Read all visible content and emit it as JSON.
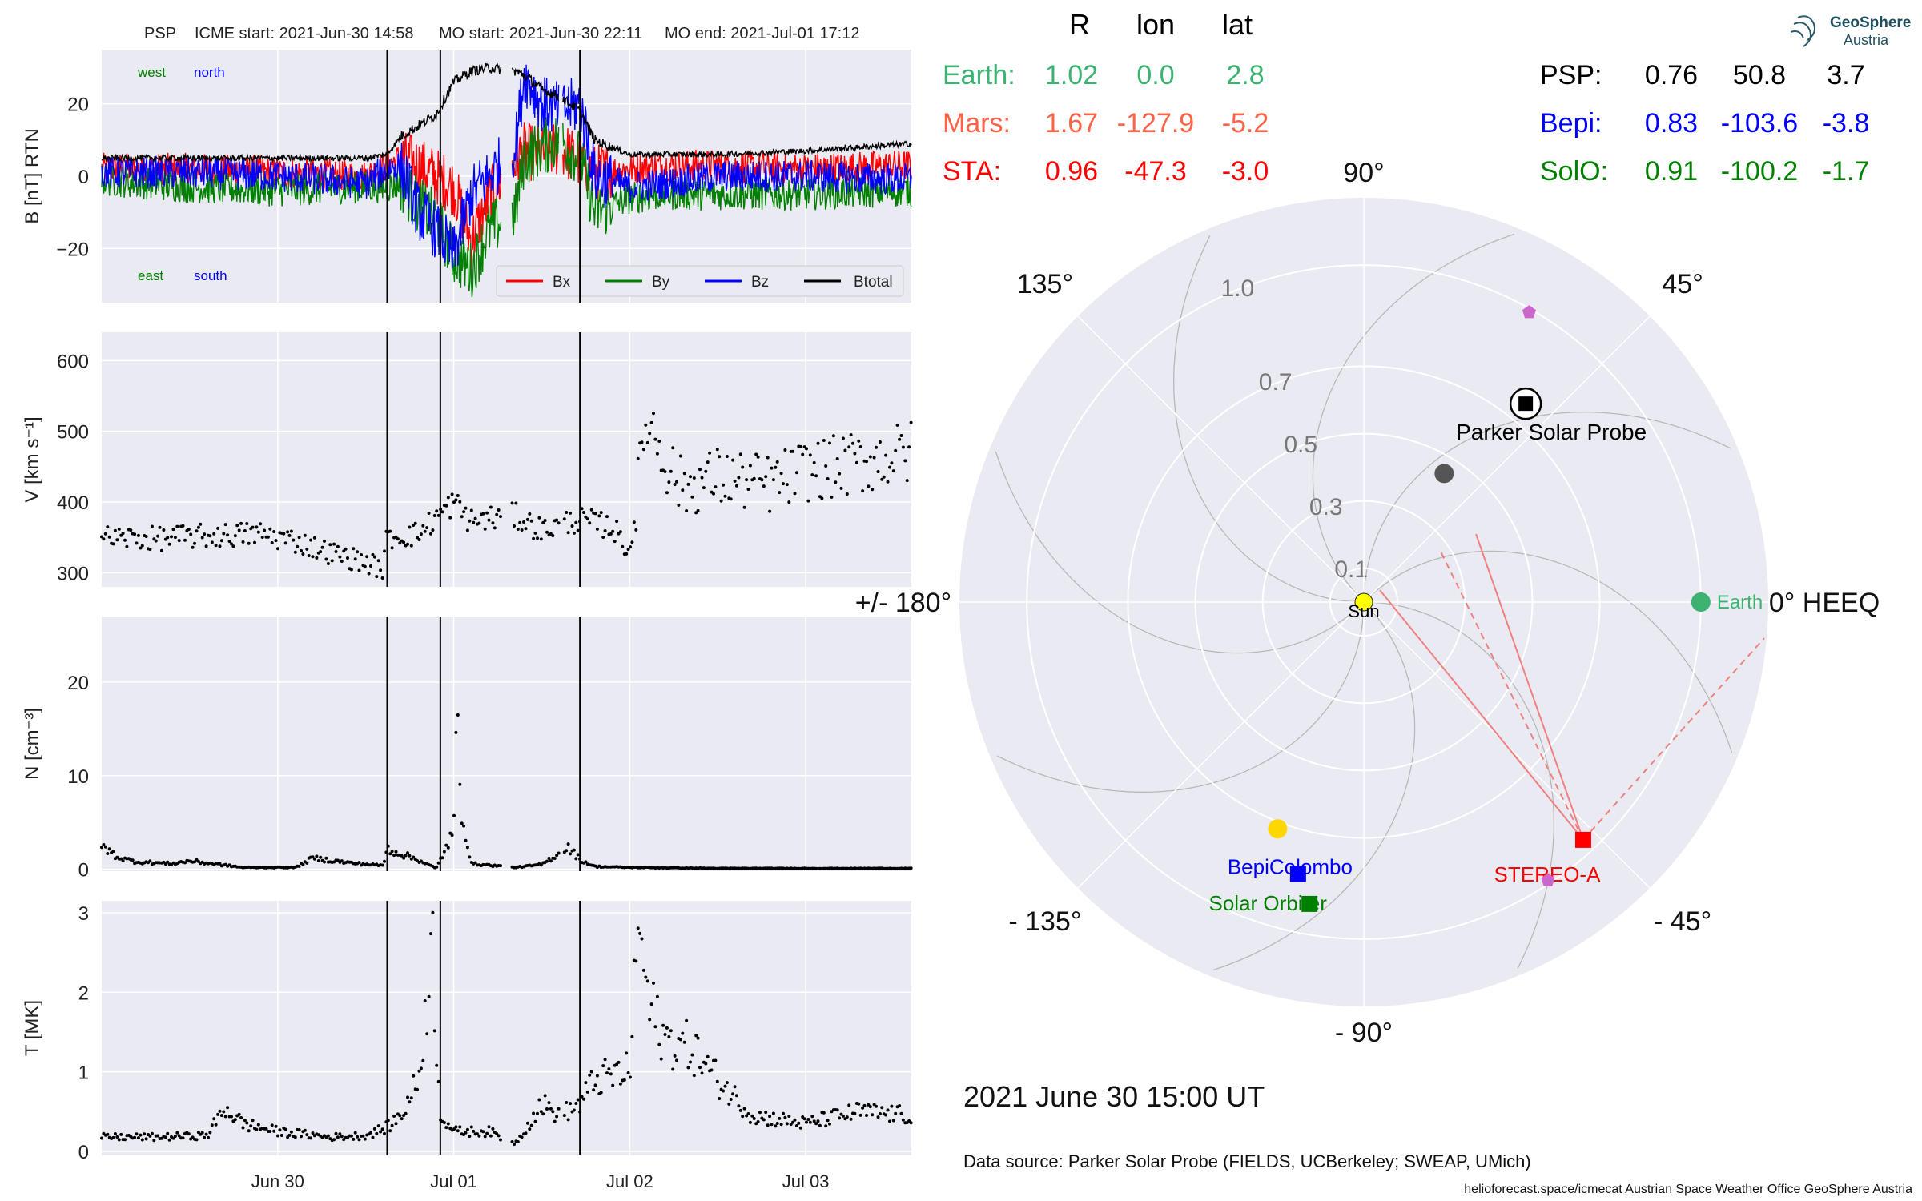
{
  "header": {
    "spacecraft": "PSP",
    "icme_start": "ICME start: 2021-Jun-30 14:58",
    "mo_start": "MO start: 2021-Jun-30 22:11",
    "mo_end": "MO end: 2021-Jul-01 17:12"
  },
  "colors": {
    "panel_bg": "#eaeaf2",
    "bx": "#ff0000",
    "by": "#008000",
    "bz": "#0000ff",
    "btotal": "#000000",
    "earth": "#3cb371",
    "mars": "#ff6347",
    "sta": "#ff0000",
    "bepi": "#0000ff",
    "solo": "#008000",
    "venus": "#ffd700",
    "mercury": "#555555",
    "planet_marker": "#cc66cc"
  },
  "timeseries": {
    "x_start_day": 0.0,
    "x_end_day": 4.6,
    "x_ticks": [
      {
        "day": 1.0,
        "label": "Jun 30"
      },
      {
        "day": 2.0,
        "label": "Jul 01"
      },
      {
        "day": 3.0,
        "label": "Jul 02"
      },
      {
        "day": 4.0,
        "label": "Jul 03"
      }
    ],
    "event_lines_day": [
      1.622,
      1.924,
      2.717
    ]
  },
  "chart_data": [
    {
      "type": "line",
      "title": "B [nT] RTN",
      "ylabel": "B [nT] RTN",
      "ylim": [
        -35,
        35
      ],
      "yticks": [
        20,
        0,
        -20
      ],
      "ytick_labels": [
        "20",
        "0",
        "−20"
      ],
      "corner_labels": {
        "west": "west",
        "north": "north",
        "east": "east",
        "south": "south"
      },
      "legend": "bottom-right",
      "series": [
        {
          "name": "Bx",
          "x": [
            0.0,
            0.5,
            1.0,
            1.5,
            1.62,
            1.7,
            1.8,
            1.9,
            2.0,
            2.1,
            2.2,
            2.35,
            2.4,
            2.5,
            2.6,
            2.72,
            2.8,
            3.0,
            3.2,
            3.5,
            4.0,
            4.6
          ],
          "y": [
            2,
            2,
            1,
            0,
            3,
            5,
            3,
            0,
            -3,
            -18,
            -6,
            4,
            7,
            6,
            8,
            4,
            1,
            2,
            3,
            3,
            2,
            3
          ]
        },
        {
          "name": "By",
          "x": [
            0.0,
            0.5,
            1.0,
            1.5,
            1.62,
            1.7,
            1.8,
            1.9,
            2.0,
            2.1,
            2.2,
            2.35,
            2.4,
            2.5,
            2.6,
            2.72,
            2.8,
            3.0,
            3.2,
            3.5,
            4.0,
            4.6
          ],
          "y": [
            -1,
            -3,
            -4,
            -3,
            -3,
            -2,
            -8,
            -12,
            -22,
            -26,
            -15,
            -10,
            5,
            8,
            10,
            5,
            -10,
            -6,
            -5,
            -5,
            -5,
            -4
          ]
        },
        {
          "name": "Bz",
          "x": [
            0.0,
            0.5,
            1.0,
            1.5,
            1.62,
            1.7,
            1.8,
            1.9,
            2.0,
            2.1,
            2.2,
            2.35,
            2.4,
            2.5,
            2.6,
            2.72,
            2.8,
            3.0,
            3.2,
            3.5,
            4.0,
            4.6
          ],
          "y": [
            1,
            1,
            0,
            -2,
            2,
            3,
            -10,
            -15,
            -22,
            -5,
            0,
            8,
            28,
            20,
            18,
            20,
            0,
            -3,
            -2,
            0,
            0,
            -1
          ]
        },
        {
          "name": "Btotal",
          "x": [
            0.0,
            0.5,
            1.0,
            1.5,
            1.62,
            1.7,
            1.8,
            1.9,
            2.0,
            2.1,
            2.2,
            2.35,
            2.4,
            2.5,
            2.6,
            2.72,
            2.8,
            3.0,
            3.2,
            3.5,
            4.0,
            4.6
          ],
          "y": [
            5,
            5,
            5,
            5,
            6,
            11,
            14,
            17,
            26,
            29,
            30,
            29,
            28,
            24,
            22,
            18,
            10,
            6,
            6,
            6,
            7,
            9
          ]
        }
      ]
    },
    {
      "type": "scatter",
      "title": "V [km s$^{-1}$]",
      "ylabel": "V [km s⁻¹]",
      "ylim": [
        280,
        640
      ],
      "yticks": [
        600,
        500,
        400,
        300
      ],
      "ytick_labels": [
        "600",
        "500",
        "400",
        "300"
      ],
      "series": [
        {
          "name": "V",
          "x": [
            0.0,
            0.3,
            0.6,
            0.9,
            1.1,
            1.3,
            1.5,
            1.6,
            1.62,
            1.8,
            1.9,
            2.0,
            2.1,
            2.15,
            2.35,
            2.5,
            2.7,
            2.9,
            3.0,
            3.1,
            3.2,
            3.3,
            3.5,
            3.8,
            4.0,
            4.2,
            4.6
          ],
          "y": [
            350,
            348,
            352,
            355,
            345,
            328,
            315,
            305,
            350,
            355,
            378,
            400,
            372,
            375,
            380,
            360,
            375,
            365,
            330,
            525,
            460,
            420,
            435,
            425,
            445,
            450,
            470
          ]
        }
      ]
    },
    {
      "type": "scatter",
      "title": "N [cm$^{-3}$]",
      "ylabel": "N [cm⁻³]",
      "ylim": [
        -0.2,
        27
      ],
      "yticks": [
        20,
        10,
        0
      ],
      "ytick_labels": [
        "20",
        "10",
        "0"
      ],
      "series": [
        {
          "name": "N",
          "x": [
            0.0,
            0.1,
            0.2,
            0.4,
            0.5,
            0.8,
            1.1,
            1.2,
            1.4,
            1.6,
            1.62,
            1.8,
            1.9,
            2.0,
            2.02,
            2.04,
            2.1,
            2.35,
            2.5,
            2.65,
            2.72,
            2.8,
            3.0,
            3.5,
            4.0,
            4.6
          ],
          "y": [
            2.5,
            1.2,
            0.8,
            0.6,
            0.9,
            0.2,
            0.2,
            1.2,
            0.7,
            0.4,
            2.2,
            1.0,
            0.1,
            4.0,
            16.5,
            7.0,
            0.6,
            0.2,
            0.5,
            2.4,
            1.0,
            0.3,
            0.2,
            0.1,
            0.1,
            0.1
          ]
        }
      ]
    },
    {
      "type": "scatter",
      "title": "T [MK]",
      "ylabel": "T [MK]",
      "ylim": [
        -0.05,
        3.15
      ],
      "yticks": [
        3,
        2,
        1,
        0
      ],
      "ytick_labels": [
        "3",
        "2",
        "1",
        "0"
      ],
      "series": [
        {
          "name": "T",
          "x": [
            0.0,
            0.3,
            0.6,
            0.7,
            0.8,
            1.0,
            1.3,
            1.5,
            1.62,
            1.7,
            1.8,
            1.88,
            1.9,
            1.92,
            2.0,
            2.2,
            2.35,
            2.5,
            2.6,
            2.72,
            2.8,
            3.0,
            3.05,
            3.1,
            3.2,
            3.35,
            3.5,
            3.7,
            4.0,
            4.3,
            4.6
          ],
          "y": [
            0.18,
            0.18,
            0.2,
            0.55,
            0.35,
            0.25,
            0.18,
            0.2,
            0.3,
            0.45,
            0.9,
            2.6,
            1.5,
            0.5,
            0.25,
            0.25,
            0.1,
            0.6,
            0.45,
            0.6,
            0.9,
            1.0,
            2.95,
            1.9,
            1.4,
            1.3,
            0.9,
            0.45,
            0.35,
            0.5,
            0.45
          ]
        }
      ]
    },
    {
      "type": "scatter",
      "title": "Spacecraft positions, HEEQ",
      "polar": true,
      "r_rings": [
        0.1,
        0.3,
        0.5,
        0.7,
        1.0
      ],
      "r_ring_labels": [
        "0.1",
        "0.3",
        "0.5",
        "0.7",
        "1.0"
      ],
      "r_max": 1.2,
      "angle_labels": [
        {
          "deg": 0,
          "label": "0° HEEQ"
        },
        {
          "deg": 45,
          "label": "45°"
        },
        {
          "deg": 90,
          "label": "90°"
        },
        {
          "deg": 135,
          "label": "135°"
        },
        {
          "deg": 180,
          "label": "+/- 180°"
        },
        {
          "deg": -135,
          "label": "- 135°"
        },
        {
          "deg": -90,
          "label": "- 90°"
        },
        {
          "deg": -45,
          "label": "- 45°"
        }
      ],
      "bodies": [
        {
          "name": "Sun",
          "label": "Sun",
          "r": 0.0,
          "lon": 0.0,
          "marker": "sun"
        },
        {
          "name": "Earth",
          "label": "Earth",
          "r": 1.0,
          "lon": 0.0,
          "marker": "circle"
        },
        {
          "name": "Parker Solar Probe",
          "label": "Parker Solar Probe",
          "r": 0.76,
          "lon": 50.8,
          "marker": "psp"
        },
        {
          "name": "STEREO-A",
          "label": "STEREO-A",
          "r": 0.96,
          "lon": -47.3,
          "marker": "square"
        },
        {
          "name": "BepiColombo",
          "label": "BepiColombo",
          "r": 0.83,
          "lon": -103.6,
          "marker": "square"
        },
        {
          "name": "Solar Orbiter",
          "label": "Solar Orbiter",
          "r": 0.91,
          "lon": -100.2,
          "marker": "square"
        },
        {
          "name": "Venus",
          "label": "",
          "r": 0.72,
          "lon": -110.8,
          "marker": "circle"
        },
        {
          "name": "Mercury",
          "label": "",
          "r": 0.45,
          "lon": 58.0,
          "marker": "circle"
        },
        {
          "name": "Marker North",
          "label": "",
          "r": 0.99,
          "lon": 60.3,
          "marker": "pentagon"
        },
        {
          "name": "Marker South",
          "label": "",
          "r": 0.99,
          "lon": -56.5,
          "marker": "pentagon"
        }
      ]
    }
  ],
  "position_table": {
    "col_headers": [
      "R",
      "lon",
      "lat"
    ],
    "left_rows": [
      {
        "label": "Earth:",
        "r": "1.02",
        "lon": "0.0",
        "lat": "2.8",
        "color": "#3cb371"
      },
      {
        "label": "Mars:",
        "r": "1.67",
        "lon": "-127.9",
        "lat": "-5.2",
        "color": "#ff6347"
      },
      {
        "label": "STA:",
        "r": "0.96",
        "lon": "-47.3",
        "lat": "-3.0",
        "color": "#ff0000"
      }
    ],
    "right_rows": [
      {
        "label": "PSP:",
        "r": "0.76",
        "lon": "50.8",
        "lat": "3.7",
        "color": "#000000"
      },
      {
        "label": "Bepi:",
        "r": "0.83",
        "lon": "-103.6",
        "lat": "-3.8",
        "color": "#0000ff"
      },
      {
        "label": "SolO:",
        "r": "0.91",
        "lon": "-100.2",
        "lat": "-1.7",
        "color": "#008000"
      }
    ]
  },
  "logo": {
    "line1": "GeoSphere",
    "line2": "Austria"
  },
  "timestamp": "2021 June 30  15:00 UT",
  "data_source": "Data source: Parker Solar Probe (FIELDS, UCBerkeley; SWEAP, UMich)",
  "footer": "helioforecast.space/icmecat   Austrian Space Weather Office   GeoSphere Austria"
}
